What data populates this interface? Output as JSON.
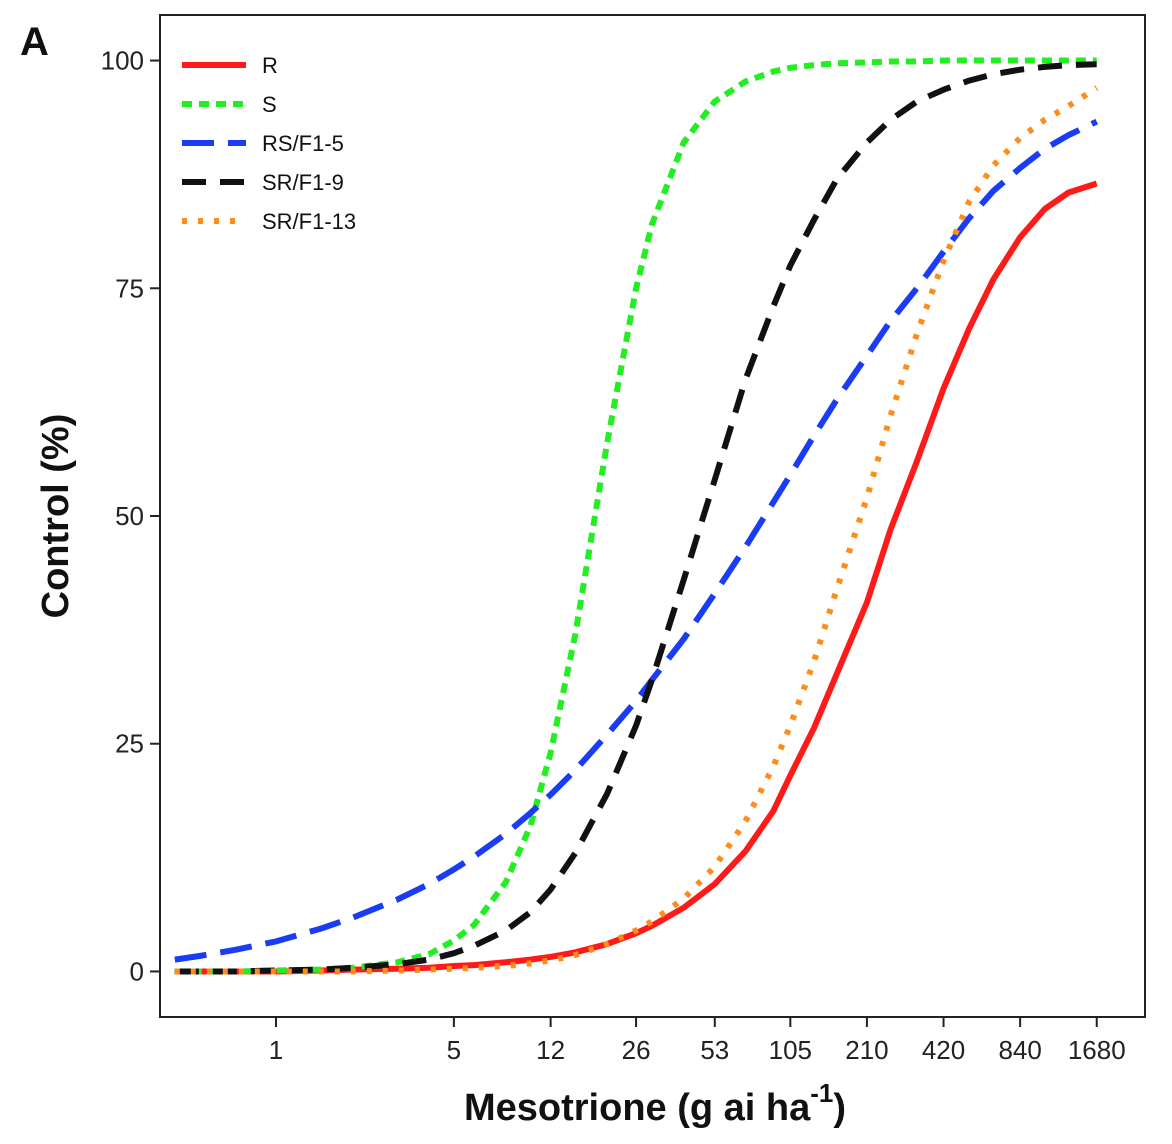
{
  "panel_label": "A",
  "chart_data": {
    "type": "line",
    "title": "",
    "xlabel": "Mesotrione (g ai ha",
    "xlabel_superscript": "-1",
    "xlabel_suffix": ")",
    "ylabel": "Control (%)",
    "x_scale": "log",
    "x_ticks": [
      1,
      5,
      12,
      26,
      53,
      105,
      210,
      420,
      840,
      1680
    ],
    "x_tick_labels": [
      "1",
      "5",
      "12",
      "26",
      "53",
      "105",
      "210",
      "420",
      "840",
      "1680"
    ],
    "y_ticks": [
      0,
      25,
      50,
      75,
      100
    ],
    "y_tick_labels": [
      "0",
      "25",
      "50",
      "75",
      "100"
    ],
    "ylim": [
      -5,
      105
    ],
    "xlim": [
      0.35,
      2600
    ],
    "grid": false,
    "legend_position": "top-left",
    "x": [
      0.4,
      0.5,
      0.7,
      1,
      1.5,
      2,
      3,
      4,
      5,
      6,
      8,
      10,
      12,
      15,
      20,
      26,
      30,
      40,
      53,
      70,
      90,
      105,
      130,
      160,
      210,
      260,
      330,
      420,
      530,
      660,
      840,
      1050,
      1300,
      1680
    ],
    "series": [
      {
        "name": "R",
        "color": "#ff1a1a",
        "dash": "solid",
        "values": [
          0,
          0,
          0,
          0,
          0.1,
          0.2,
          0.3,
          0.4,
          0.6,
          0.7,
          1,
          1.3,
          1.6,
          2.1,
          3,
          4.2,
          5,
          7,
          9.6,
          13.2,
          17.6,
          21.5,
          26.7,
          32.7,
          40.5,
          48.5,
          56,
          64,
          70.6,
          76,
          80.6,
          83.7,
          85.5,
          86.5
        ]
      },
      {
        "name": "S",
        "color": "#22ee22",
        "dash": "dashed-short",
        "values": [
          0,
          0,
          0,
          0.1,
          0.2,
          0.4,
          1,
          1.9,
          3.4,
          5.1,
          9.8,
          16,
          24,
          37,
          58,
          75,
          82,
          91,
          95.5,
          97.7,
          98.8,
          99.2,
          99.5,
          99.7,
          99.8,
          99.9,
          99.9,
          100,
          100,
          100,
          100,
          100,
          100,
          100
        ]
      },
      {
        "name": "RS/F1-5",
        "color": "#1a3cf5",
        "dash": "dashed-long",
        "values": [
          1.3,
          1.7,
          2.4,
          3.3,
          4.7,
          5.9,
          7.9,
          9.6,
          11.2,
          12.6,
          15.1,
          17.4,
          19.4,
          22.1,
          26,
          29.7,
          32,
          36.5,
          41.5,
          46.6,
          51.5,
          54.5,
          58.8,
          62.8,
          67.6,
          71.4,
          75,
          79,
          82.7,
          85.7,
          88.2,
          90.3,
          91.8,
          93.3
        ]
      },
      {
        "name": "SR/F1-9",
        "color": "#111111",
        "dash": "dashed-medium",
        "values": [
          0,
          0,
          0,
          0.1,
          0.2,
          0.4,
          0.8,
          1.3,
          2,
          2.8,
          4.5,
          6.5,
          9,
          13,
          19.5,
          27,
          32,
          43,
          54,
          65,
          73,
          77.5,
          82.5,
          87,
          91,
          93.5,
          95.5,
          96.8,
          97.8,
          98.5,
          99,
          99.3,
          99.5,
          99.6
        ]
      },
      {
        "name": "SR/F1-13",
        "color": "#ff8c1a",
        "dash": "dotted",
        "values": [
          0,
          0,
          0,
          0,
          0,
          0,
          0.1,
          0.2,
          0.3,
          0.4,
          0.6,
          0.9,
          1.2,
          1.8,
          3,
          4.5,
          5.5,
          8,
          11.5,
          16.5,
          22.5,
          27,
          34,
          42,
          52,
          61,
          70,
          78,
          84.5,
          88.5,
          91.5,
          93.5,
          95,
          97
        ]
      }
    ]
  }
}
